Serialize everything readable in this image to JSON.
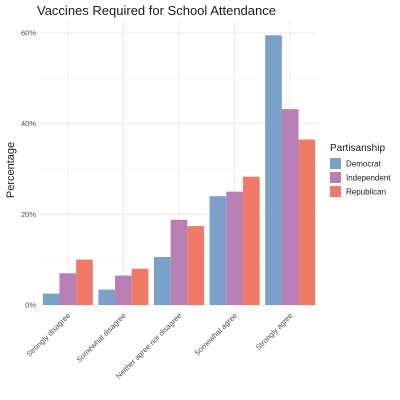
{
  "chart_data": {
    "type": "bar",
    "title": "Vaccines Required for School Attendance",
    "xlabel": "",
    "ylabel": "Percentage",
    "ylim": [
      0,
      0.6
    ],
    "ytick_values": [
      0,
      0.2,
      0.4,
      0.6
    ],
    "ytick_labels": [
      "0%",
      "20%",
      "40%",
      "60%"
    ],
    "categories": [
      "Strongly disagree",
      "Somewhat disagree",
      "Neither agree nor disagree",
      "Somewhat agree",
      "Strongly agree"
    ],
    "legend": {
      "title": "Partisanship",
      "position": "right"
    },
    "grid": true,
    "series": [
      {
        "name": "Democrat",
        "color": "#7aa2c8",
        "values": [
          0.025,
          0.034,
          0.106,
          0.24,
          0.595
        ]
      },
      {
        "name": "Independent",
        "color": "#b87fb5",
        "values": [
          0.07,
          0.065,
          0.188,
          0.25,
          0.432
        ]
      },
      {
        "name": "Republican",
        "color": "#f07a66",
        "values": [
          0.1,
          0.08,
          0.174,
          0.283,
          0.365
        ]
      }
    ]
  }
}
